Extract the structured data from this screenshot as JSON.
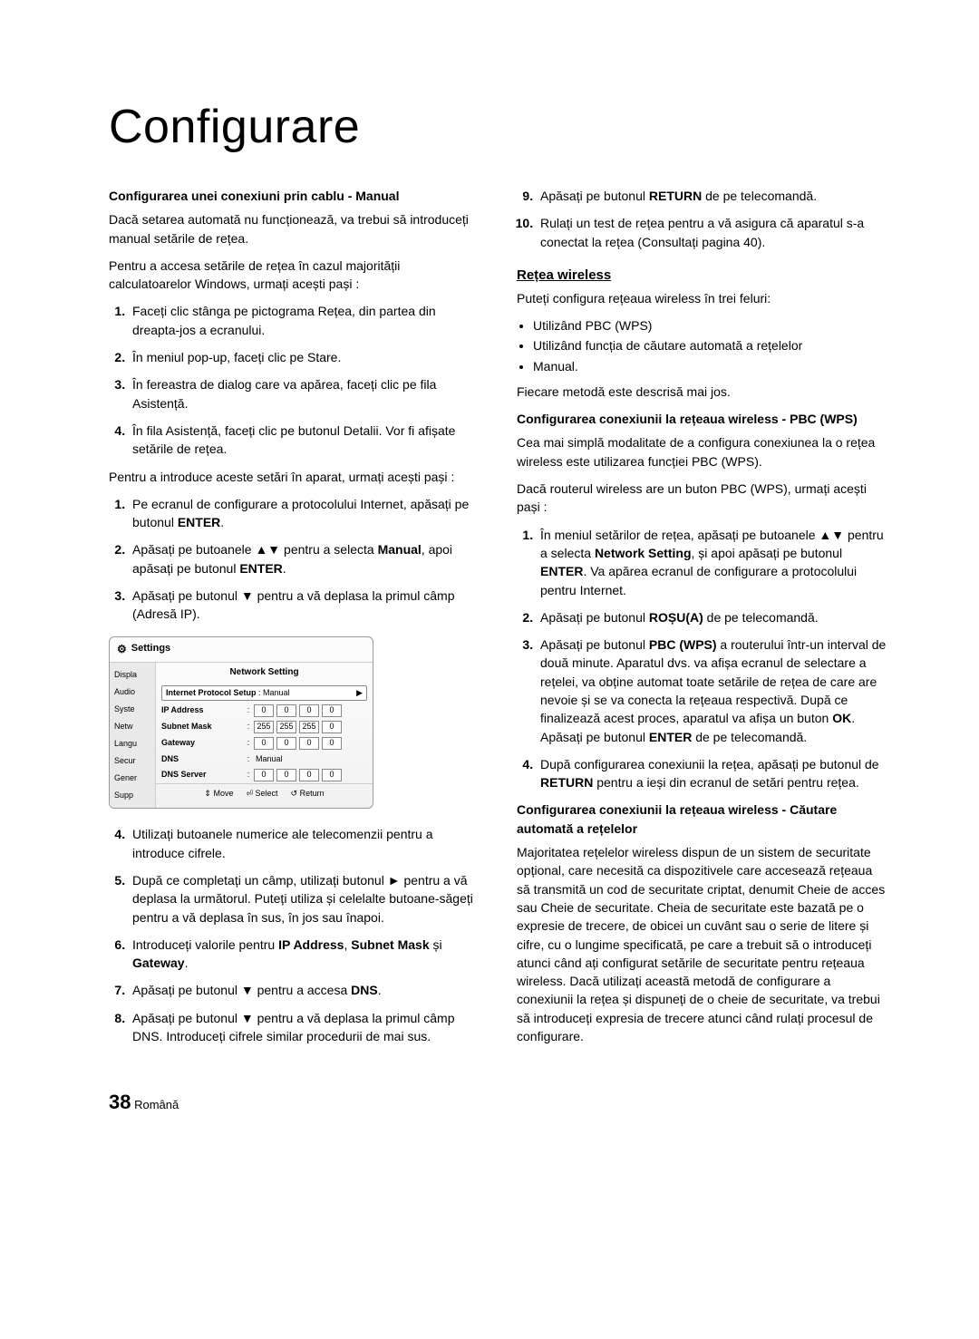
{
  "page_title": "Configurare",
  "left": {
    "h1": "Configurarea unei conexiuni prin cablu - Manual",
    "p1": "Dacă setarea automată nu funcționează, va trebui să introduceți manual setările de rețea.",
    "p2": "Pentru a accesa setările de rețea în cazul majorității calculatoarelor Windows, urmați acești pași :",
    "list1": {
      "i1": "Faceți clic stânga pe pictograma Rețea, din partea din dreapta-jos a ecranului.",
      "i2": "În meniul pop-up, faceți clic pe Stare.",
      "i3": "În fereastra de dialog care va apărea, faceți clic pe fila Asistență.",
      "i4": "În fila Asistență, faceți clic pe butonul Detalii. Vor fi afișate setările de rețea."
    },
    "p3": "Pentru a introduce aceste setări în aparat, urmați acești pași :",
    "list2": {
      "i1a": "Pe ecranul de configurare a protocolului Internet, apăsați pe butonul ",
      "i1b": "ENTER",
      "i1c": ".",
      "i2a": "Apăsați pe butoanele ▲▼ pentru a selecta ",
      "i2b": "Manual",
      "i2c": ", apoi apăsați pe butonul ",
      "i2d": "ENTER",
      "i2e": ".",
      "i3": "Apăsați pe butonul ▼ pentru a vă deplasa la primul câmp (Adresă IP)."
    },
    "list3": {
      "i4": "Utilizați butoanele numerice ale telecomenzii pentru a introduce cifrele.",
      "i5": "După ce completați un câmp, utilizați butonul ► pentru a vă deplasa la următorul. Puteți utiliza și celelalte butoane-săgeți pentru a vă deplasa în sus, în jos sau înapoi.",
      "i6a": "Introduceți valorile pentru ",
      "i6b": "IP Address",
      "i6c": ", ",
      "i6d": "Subnet Mask",
      "i6e": " și ",
      "i6f": "Gateway",
      "i6g": ".",
      "i7a": "Apăsați pe butonul ▼ pentru a accesa ",
      "i7b": "DNS",
      "i7c": ".",
      "i8": "Apăsați pe butonul ▼ pentru a vă deplasa la primul câmp DNS. Introduceți cifrele similar procedurii de mai sus."
    }
  },
  "right": {
    "list1": {
      "i9a": "Apăsați pe butonul ",
      "i9b": "RETURN",
      "i9c": " de pe telecomandă.",
      "i10": "Rulați un test de rețea pentru a vă asigura că aparatul s-a conectat la rețea (Consultați pagina 40)."
    },
    "h_wireless": "Rețea wireless",
    "p_w1": "Puteți configura rețeaua wireless în trei feluri:",
    "bullets": {
      "b1": "Utilizând PBC (WPS)",
      "b2": "Utilizând funcția de căutare automată a rețelelor",
      "b3": "Manual."
    },
    "p_w2": "Fiecare metodă este descrisă mai jos.",
    "h_pbc": "Configurarea conexiunii la rețeaua wireless - PBC (WPS)",
    "p_pbc1": "Cea mai simplă modalitate de a configura conexiunea la o rețea wireless este utilizarea funcției PBC (WPS).",
    "p_pbc2": "Dacă routerul wireless are un buton PBC (WPS), urmați acești pași :",
    "list_pbc": {
      "i1a": "În meniul setărilor de rețea, apăsați pe butoanele ▲▼ pentru a selecta ",
      "i1b": "Network Setting",
      "i1c": ", și apoi apăsați pe butonul ",
      "i1d": "ENTER",
      "i1e": ". Va apărea ecranul de configurare a protocolului pentru Internet.",
      "i2a": "Apăsați pe butonul ",
      "i2b": "ROȘU(A)",
      "i2c": " de pe telecomandă.",
      "i3a": "Apăsați pe butonul ",
      "i3b": "PBC (WPS)",
      "i3c": " a routerului într-un interval de două minute. Aparatul dvs. va afișa ecranul de selectare a rețelei, va obține automat toate setările de rețea de care are nevoie și se va conecta la rețeaua respectivă. După ce finalizează acest proces, aparatul va afișa un buton ",
      "i3d": "OK",
      "i3e": ". Apăsați pe butonul ",
      "i3f": "ENTER",
      "i3g": " de pe telecomandă.",
      "i4a": "După configurarea conexiunii la rețea, apăsați pe butonul de ",
      "i4b": "RETURN",
      "i4c": " pentru a ieși din ecranul de setări pentru rețea."
    },
    "h_auto": "Configurarea conexiunii la rețeaua wireless - Căutare automată a rețelelor",
    "p_auto": "Majoritatea rețelelor wireless dispun de un sistem de securitate opțional, care necesită ca dispozitivele care accesează rețeaua să transmită un cod de securitate criptat, denumit Cheie de acces sau Cheie de securitate. Cheia de securitate este bazată pe o expresie de trecere, de obicei un cuvânt sau o serie de litere și cifre, cu o lungime specificată, pe care a trebuit să o introduceți atunci când ați configurat setările de securitate pentru rețeaua wireless. Dacă utilizați această metodă de configurare a conexiunii la rețea și dispuneți de o cheie de securitate, va trebui să introduceți expresia de trecere atunci când rulați procesul de configurare."
  },
  "settings": {
    "title": "Settings",
    "panel_title": "Network Setting",
    "side": [
      "Displa",
      "Audio",
      "Syste",
      "Netw",
      "Langu",
      "Secur",
      "Gener",
      "Supp"
    ],
    "rows": {
      "setup_label": "Internet Protocol Setup",
      "setup_value": "Manual",
      "ip_label": "IP Address",
      "ip": [
        "0",
        "0",
        "0",
        "0"
      ],
      "mask_label": "Subnet Mask",
      "mask": [
        "255",
        "255",
        "255",
        "0"
      ],
      "gw_label": "Gateway",
      "gw": [
        "0",
        "0",
        "0",
        "0"
      ],
      "dns_label": "DNS",
      "dns_value": "Manual",
      "dnss_label": "DNS Server",
      "dnss": [
        "0",
        "0",
        "0",
        "0"
      ]
    },
    "bottom": {
      "move": "Move",
      "select": "Select",
      "return": "Return"
    }
  },
  "footer": {
    "num": "38",
    "lang": "Română"
  }
}
